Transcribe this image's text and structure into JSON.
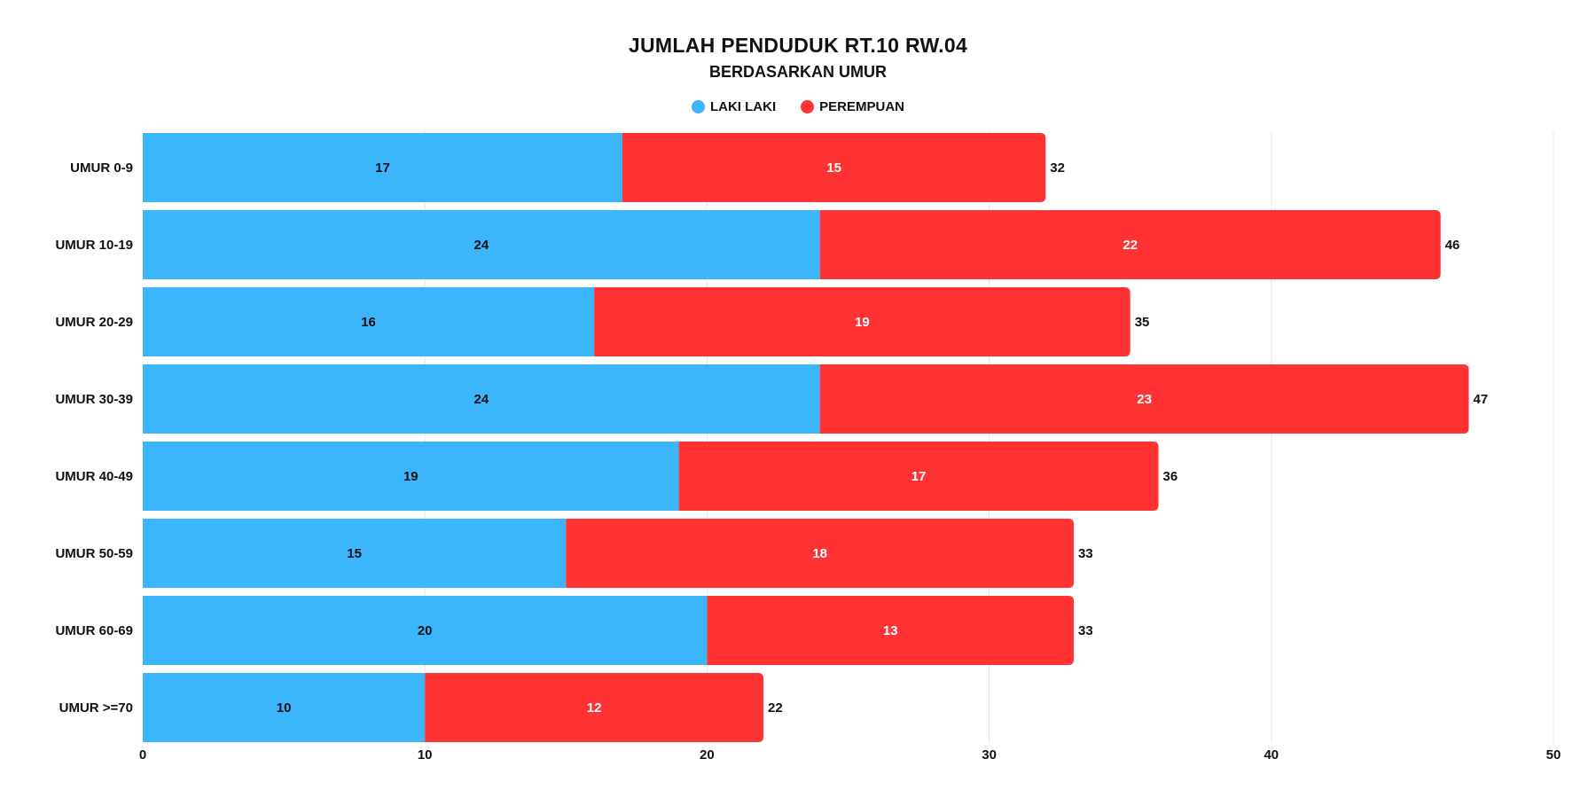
{
  "chart_data": {
    "type": "bar",
    "orientation": "horizontal",
    "stacked": true,
    "title": "JUMLAH PENDUDUK RT.10 RW.04",
    "subtitle": "BERDASARKAN UMUR",
    "categories": [
      "UMUR 0-9",
      "UMUR 10-19",
      "UMUR 20-29",
      "UMUR 30-39",
      "UMUR 40-49",
      "UMUR 50-59",
      "UMUR 60-69",
      "UMUR >=70"
    ],
    "series": [
      {
        "name": "LAKI LAKI",
        "color": "#3BB5FC",
        "label_color": "#111111",
        "values": [
          17,
          24,
          16,
          24,
          19,
          15,
          20,
          10
        ]
      },
      {
        "name": "PEREMPUAN",
        "color": "#FF3333",
        "label_color": "#ffffff",
        "values": [
          15,
          22,
          19,
          23,
          17,
          18,
          13,
          12
        ]
      }
    ],
    "totals": [
      32,
      46,
      35,
      47,
      36,
      33,
      33,
      22
    ],
    "xlim": [
      0,
      50
    ],
    "xticks": [
      0,
      10,
      20,
      30,
      40,
      50
    ],
    "grid": true,
    "legend_position": "top-center"
  }
}
